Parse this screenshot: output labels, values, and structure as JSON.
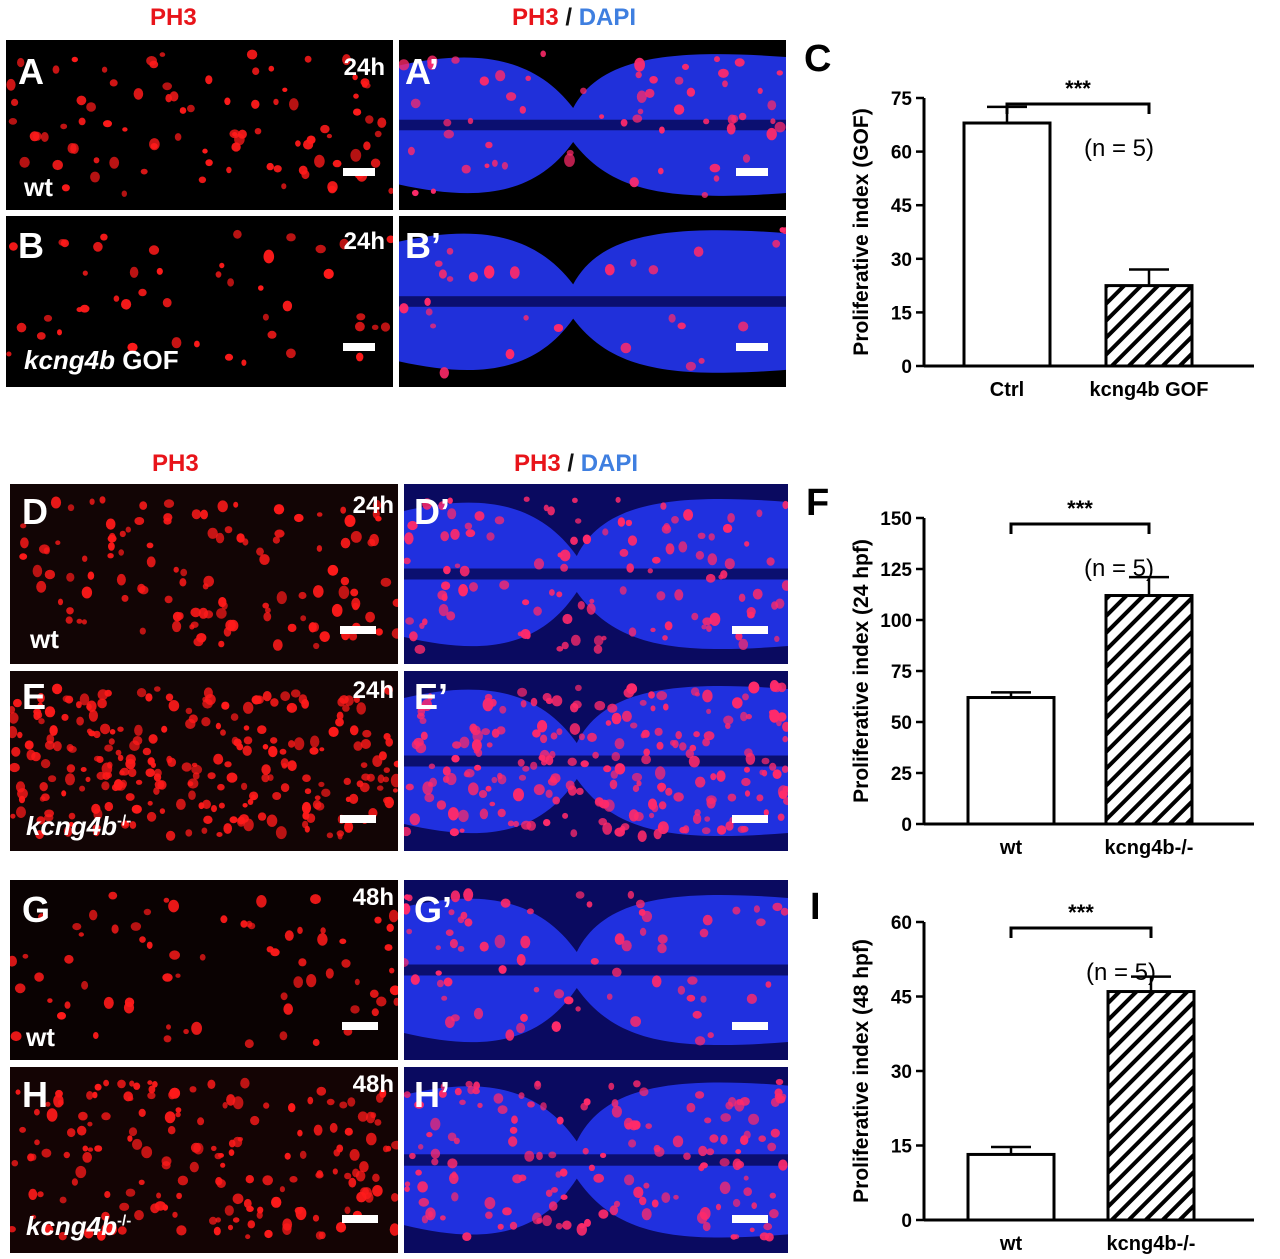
{
  "colors": {
    "ph3": "#e8141a",
    "dapi": "#3f7fe0",
    "sep": "#111111",
    "bar_fill": "#ffffff",
    "axis": "#000000"
  },
  "rows": [
    {
      "ph3": "PH3",
      "merge_ph3": "PH3",
      "merge_sep": "/",
      "merge_dapi": "DAPI",
      "left": {
        "label": "A",
        "time": "24h",
        "geno": "wt"
      },
      "left2": {
        "label": "B",
        "time": "24h",
        "geno_italic": "kcng4b",
        "geno_rest": " GOF"
      },
      "right": {
        "label": "A’"
      },
      "right2": {
        "label": "B’"
      }
    },
    {
      "ph3": "PH3",
      "merge_ph3": "PH3",
      "merge_sep": "/",
      "merge_dapi": "DAPI",
      "left": {
        "label": "D",
        "time": "24h",
        "geno": "wt"
      },
      "left2": {
        "label": "E",
        "time": "24h",
        "geno_italic": "kcng4b",
        "geno_sup": "-/-"
      },
      "right": {
        "label": "D’"
      },
      "right2": {
        "label": "E’"
      }
    },
    {
      "left": {
        "label": "G",
        "time": "48h",
        "geno": "wt"
      },
      "left2": {
        "label": "H",
        "time": "48h",
        "geno_italic": "kcng4b",
        "geno_sup": "-/-"
      },
      "right": {
        "label": "G’"
      },
      "right2": {
        "label": "H’"
      }
    }
  ],
  "chart_data": [
    {
      "panel": "C",
      "type": "bar",
      "categories": [
        "Ctrl",
        "kcng4b GOF"
      ],
      "values": [
        68,
        22.5
      ],
      "errors": [
        4.5,
        4.5
      ],
      "ylabel": "Proliferative index (GOF)",
      "yticks": [
        0,
        15,
        30,
        45,
        60,
        75
      ],
      "ylim": [
        0,
        75
      ],
      "significance": "***",
      "annotation": "(n = 5)",
      "fill": [
        "open",
        "hatched"
      ]
    },
    {
      "panel": "F",
      "type": "bar",
      "categories": [
        "wt",
        "kcng4b-/-"
      ],
      "values": [
        62,
        112
      ],
      "errors": [
        2.5,
        9
      ],
      "ylabel": "Proliferative index (24 hpf)",
      "yticks": [
        0,
        25,
        50,
        75,
        100,
        125,
        150
      ],
      "ylim": [
        0,
        150
      ],
      "significance": "***",
      "annotation": "(n = 5)",
      "fill": [
        "open",
        "hatched"
      ]
    },
    {
      "panel": "I",
      "type": "bar",
      "categories": [
        "wt",
        "kcng4b-/-"
      ],
      "values": [
        13.2,
        46
      ],
      "errors": [
        1.5,
        3
      ],
      "ylabel": "Proliferative index (48 hpf)",
      "yticks": [
        0,
        15,
        30,
        45,
        60
      ],
      "ylim": [
        0,
        60
      ],
      "significance": "***",
      "annotation": "(n = 5)",
      "fill": [
        "open",
        "hatched"
      ]
    }
  ]
}
